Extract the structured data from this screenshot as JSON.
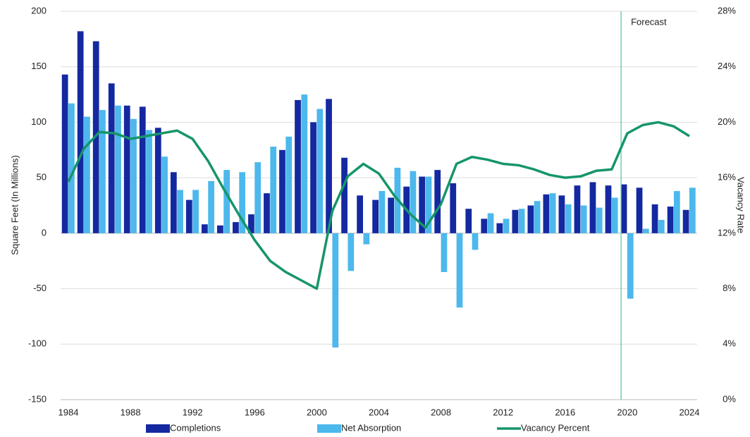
{
  "chart_data": {
    "type": "bar",
    "x": [
      1984,
      1985,
      1986,
      1987,
      1988,
      1989,
      1990,
      1991,
      1992,
      1993,
      1994,
      1995,
      1996,
      1997,
      1998,
      1999,
      2000,
      2001,
      2002,
      2003,
      2004,
      2005,
      2006,
      2007,
      2008,
      2009,
      2010,
      2011,
      2012,
      2013,
      2014,
      2015,
      2016,
      2017,
      2018,
      2019,
      2020,
      2021,
      2022,
      2023,
      2024
    ],
    "xlim": [
      1983.5,
      2024.5
    ],
    "xticks": [
      1984,
      1988,
      1992,
      1996,
      2000,
      2004,
      2008,
      2012,
      2016,
      2020,
      2024
    ],
    "ylabel": "Square Feet (In Millions)",
    "y2label": "Vacancy Rate",
    "ylim": [
      -150,
      200
    ],
    "yticks": [
      -150,
      -100,
      -50,
      0,
      50,
      100,
      150,
      200
    ],
    "y2lim": [
      0,
      28
    ],
    "y2ticks": [
      {
        "value": 0,
        "label": "0%"
      },
      {
        "value": 4,
        "label": "4%"
      },
      {
        "value": 8,
        "label": "8%"
      },
      {
        "value": 12,
        "label": "12%"
      },
      {
        "value": 16,
        "label": "16%"
      },
      {
        "value": 20,
        "label": "20%"
      },
      {
        "value": 24,
        "label": "24%"
      },
      {
        "value": 28,
        "label": "28%"
      }
    ],
    "grid": true,
    "legend": "bottom",
    "forecast": {
      "x": 2019.6,
      "label": "Forecast",
      "color": "#5cc7a8"
    },
    "series": [
      {
        "name": "Completions",
        "type": "bar",
        "color": "#1428a0",
        "values": [
          143,
          182,
          173,
          135,
          115,
          114,
          95,
          55,
          30,
          8,
          7,
          10,
          17,
          36,
          75,
          120,
          100,
          121,
          68,
          34,
          30,
          32,
          42,
          51,
          57,
          45,
          22,
          13,
          9,
          21,
          25,
          35,
          34,
          43,
          46,
          43,
          44,
          41,
          26,
          24,
          21
        ]
      },
      {
        "name": "Net Absorption",
        "type": "bar",
        "color": "#4db8ec",
        "values": [
          117,
          105,
          111,
          115,
          103,
          93,
          69,
          39,
          39,
          47,
          57,
          55,
          64,
          78,
          87,
          125,
          112,
          -103,
          -34,
          -10,
          38,
          59,
          56,
          51,
          -35,
          -67,
          -15,
          18,
          13,
          22,
          29,
          36,
          26,
          25,
          23,
          32,
          -59,
          4,
          12,
          38,
          41
        ]
      },
      {
        "name": "Vacancy Percent",
        "type": "line",
        "axis": "y2",
        "color": "#16956a",
        "values": [
          15.7,
          18.1,
          19.3,
          19.2,
          18.8,
          19.0,
          19.2,
          19.4,
          18.8,
          17.2,
          15.2,
          13.3,
          11.5,
          10.0,
          9.2,
          8.6,
          8.0,
          13.6,
          16.1,
          17.0,
          16.3,
          14.7,
          13.4,
          12.4,
          14.1,
          17.0,
          17.5,
          17.3,
          17.0,
          16.9,
          16.6,
          16.2,
          16.0,
          16.1,
          16.5,
          16.6,
          19.2,
          19.8,
          20.0,
          19.7,
          19.0
        ]
      }
    ]
  }
}
